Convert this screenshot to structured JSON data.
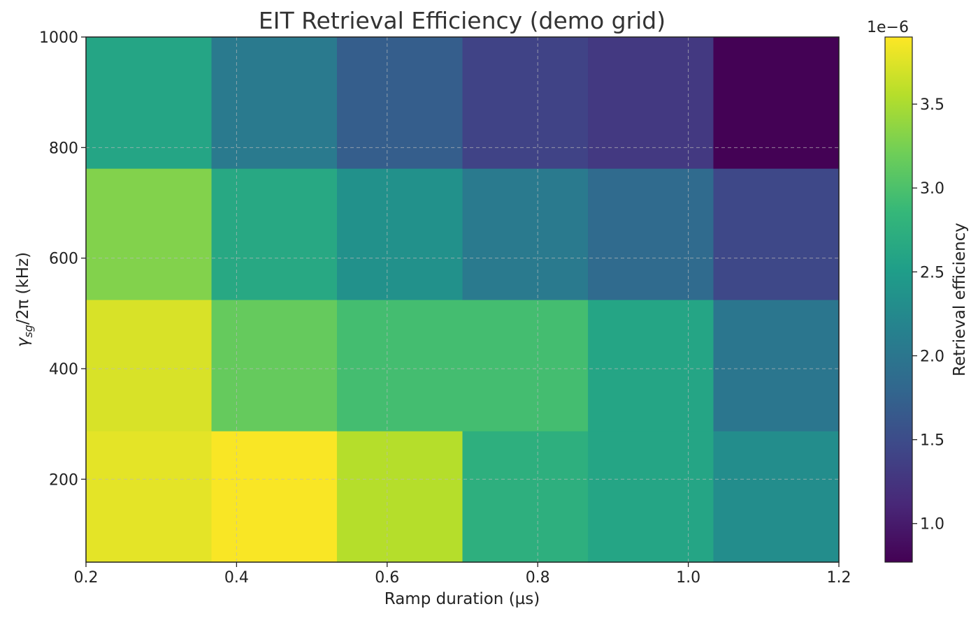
{
  "chart_data": {
    "type": "heatmap",
    "title": "EIT Retrieval Efficiency (demo grid)",
    "xlabel": "Ramp duration (µs)",
    "ylabel_parts": {
      "symbol": "γ",
      "subscript": "sg",
      "suffix": "/2π (kHz)"
    },
    "x_ticks": [
      {
        "value": 0.2,
        "label": "0.2"
      },
      {
        "value": 0.4,
        "label": "0.4"
      },
      {
        "value": 0.6,
        "label": "0.6"
      },
      {
        "value": 0.8,
        "label": "0.8"
      },
      {
        "value": 1.0,
        "label": "1.0"
      },
      {
        "value": 1.2,
        "label": "1.2"
      }
    ],
    "y_ticks": [
      {
        "value": 200,
        "label": "200"
      },
      {
        "value": 400,
        "label": "400"
      },
      {
        "value": 600,
        "label": "600"
      },
      {
        "value": 800,
        "label": "800"
      },
      {
        "value": 1000,
        "label": "1000"
      }
    ],
    "xlim": [
      0.2,
      1.2
    ],
    "ylim": [
      50,
      1000
    ],
    "x_edges": [
      0.2,
      0.3667,
      0.5333,
      0.7,
      0.8667,
      1.0333,
      1.2
    ],
    "y_edges": [
      50,
      287.5,
      525,
      762.5,
      1000
    ],
    "values": [
      [
        3.78,
        3.88,
        3.55,
        2.75,
        2.6,
        2.3
      ],
      [
        3.72,
        3.15,
        2.95,
        2.95,
        2.6,
        2.0
      ],
      [
        3.3,
        2.65,
        2.35,
        2.05,
        1.85,
        1.45
      ],
      [
        2.6,
        2.05,
        1.7,
        1.4,
        1.3,
        0.78
      ]
    ],
    "value_scale_label": "1e−6",
    "colorbar": {
      "label": "Retrieval efficiency",
      "range": [
        0.77,
        3.9
      ],
      "ticks": [
        {
          "value": 1.0,
          "label": "1.0"
        },
        {
          "value": 1.5,
          "label": "1.5"
        },
        {
          "value": 2.0,
          "label": "2.0"
        },
        {
          "value": 2.5,
          "label": "2.5"
        },
        {
          "value": 3.0,
          "label": "3.0"
        },
        {
          "value": 3.5,
          "label": "3.5"
        }
      ],
      "colormap": "viridis",
      "colors": [
        "#440154",
        "#482878",
        "#3e4989",
        "#31688e",
        "#26828e",
        "#1f9e89",
        "#35b779",
        "#6ece58",
        "#b5de2b",
        "#fde725"
      ]
    },
    "grid": true
  }
}
